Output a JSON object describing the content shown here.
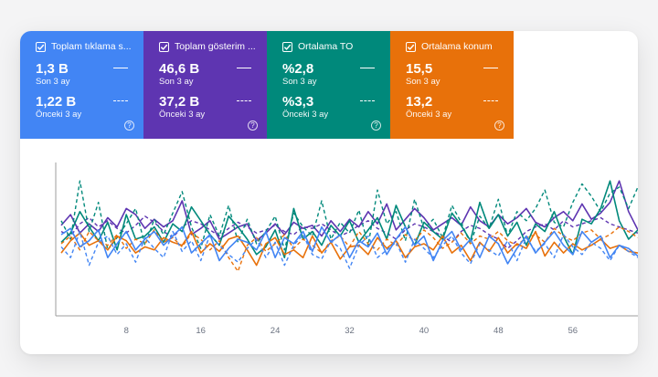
{
  "cards": [
    {
      "title": "Toplam tıklama s...",
      "value": "1,3 B",
      "period": "Son 3 ay",
      "prev_value": "1,22 B",
      "prev_period": "Önceki 3 ay",
      "color": "#4285f4"
    },
    {
      "title": "Toplam gösterim ...",
      "value": "46,6 B",
      "period": "Son 3 ay",
      "prev_value": "37,2 B",
      "prev_period": "Önceki 3 ay",
      "color": "#5e35b1"
    },
    {
      "title": "Ortalama TO",
      "value": "%2,8",
      "period": "Son 3 ay",
      "prev_value": "%3,3",
      "prev_period": "Önceki 3 ay",
      "color": "#00897b"
    },
    {
      "title": "Ortalama konum",
      "value": "15,5",
      "period": "Son 3 ay",
      "prev_value": "13,2",
      "prev_period": "Önceki 3 ay",
      "color": "#e8710a"
    }
  ],
  "help_glyph": "?",
  "chart_data": {
    "type": "line",
    "x_ticks": [
      "8",
      "16",
      "24",
      "32",
      "40",
      "48",
      "56"
    ],
    "x": [
      1,
      2,
      3,
      4,
      5,
      6,
      7,
      8,
      9,
      10,
      11,
      12,
      13,
      14,
      15,
      16,
      17,
      18,
      19,
      20,
      21,
      22,
      23,
      24,
      25,
      26,
      27,
      28,
      29,
      30,
      31,
      32,
      33,
      34,
      35,
      36,
      37,
      38,
      39,
      40,
      41,
      42,
      43,
      44,
      45,
      46,
      47,
      48,
      49,
      50,
      51,
      52,
      53,
      54,
      55,
      56,
      57,
      58,
      59,
      60,
      61,
      62,
      63
    ],
    "series": [
      {
        "color": "#5e35b1",
        "style": "solid",
        "values": [
          59,
          66,
          54,
          60,
          55,
          64,
          58,
          70,
          66,
          57,
          63,
          58,
          62,
          75,
          53,
          57,
          62,
          50,
          54,
          58,
          60,
          49,
          54,
          60,
          53,
          61,
          57,
          59,
          52,
          62,
          55,
          63,
          58,
          68,
          60,
          73,
          56,
          63,
          70,
          64,
          56,
          60,
          64,
          59,
          71,
          62,
          58,
          66,
          60,
          64,
          70,
          61,
          58,
          64,
          68,
          62,
          73,
          63,
          67,
          74,
          88,
          68,
          56
        ]
      },
      {
        "color": "#5e35b1",
        "style": "dashed",
        "values": [
          55,
          52,
          60,
          64,
          58,
          62,
          57,
          54,
          59,
          65,
          61,
          55,
          51,
          58,
          62,
          60,
          56,
          52,
          57,
          61,
          58,
          54,
          56,
          59,
          55,
          53,
          58,
          57,
          60,
          56,
          52,
          55,
          59,
          62,
          57,
          54,
          50,
          56,
          60,
          58,
          55,
          52,
          48,
          55,
          59,
          57,
          53,
          50,
          44,
          49,
          55,
          58,
          60,
          56,
          62,
          58,
          60,
          62,
          64,
          60,
          58,
          56,
          54
        ]
      },
      {
        "color": "#00897b",
        "style": "solid",
        "values": [
          48,
          54,
          68,
          58,
          49,
          61,
          43,
          66,
          50,
          52,
          58,
          48,
          60,
          55,
          71,
          62,
          53,
          46,
          65,
          58,
          50,
          40,
          45,
          56,
          38,
          70,
          50,
          55,
          46,
          59,
          52,
          62,
          48,
          56,
          64,
          50,
          72,
          58,
          46,
          61,
          55,
          50,
          67,
          59,
          49,
          74,
          57,
          66,
          52,
          61,
          46,
          60,
          55,
          68,
          52,
          40,
          63,
          60,
          70,
          88,
          62,
          50,
          56
        ]
      },
      {
        "color": "#00897b",
        "style": "dashed",
        "values": [
          62,
          50,
          88,
          55,
          74,
          43,
          51,
          60,
          70,
          46,
          63,
          53,
          67,
          81,
          58,
          44,
          66,
          52,
          72,
          48,
          63,
          47,
          55,
          65,
          43,
          67,
          58,
          52,
          75,
          50,
          61,
          54,
          69,
          46,
          82,
          60,
          68,
          49,
          76,
          57,
          63,
          51,
          72,
          61,
          47,
          65,
          57,
          76,
          52,
          68,
          62,
          70,
          82,
          61,
          58,
          74,
          86,
          78,
          68,
          80,
          84,
          70,
          84
        ]
      },
      {
        "color": "#e8710a",
        "style": "solid",
        "values": [
          41,
          49,
          54,
          46,
          49,
          43,
          52,
          49,
          41,
          45,
          43,
          51,
          48,
          46,
          55,
          41,
          47,
          42,
          50,
          52,
          43,
          33,
          47,
          51,
          40,
          43,
          38,
          52,
          41,
          48,
          37,
          45,
          46,
          40,
          51,
          44,
          49,
          38,
          45,
          47,
          43,
          52,
          41,
          46,
          36,
          48,
          42,
          51,
          41,
          47,
          44,
          55,
          39,
          48,
          41,
          47,
          43,
          46,
          50,
          44,
          46,
          42,
          41
        ]
      },
      {
        "color": "#e8710a",
        "style": "dashed",
        "values": [
          47,
          52,
          43,
          55,
          49,
          46,
          53,
          44,
          50,
          47,
          56,
          48,
          51,
          45,
          54,
          50,
          43,
          49,
          38,
          29,
          46,
          51,
          42,
          47,
          53,
          44,
          50,
          46,
          41,
          49,
          52,
          45,
          55,
          47,
          43,
          50,
          46,
          53,
          49,
          56,
          51,
          44,
          48,
          54,
          47,
          52,
          50,
          55,
          49,
          46,
          51,
          53,
          48,
          57,
          52,
          49,
          54,
          56,
          50,
          53,
          58,
          55,
          51
        ]
      },
      {
        "color": "#4285f4",
        "style": "solid",
        "values": [
          53,
          57,
          45,
          49,
          56,
          38,
          47,
          55,
          43,
          50,
          55,
          46,
          52,
          58,
          41,
          47,
          53,
          36,
          44,
          50,
          48,
          43,
          55,
          38,
          51,
          47,
          55,
          42,
          58,
          48,
          53,
          38,
          49,
          45,
          54,
          40,
          50,
          58,
          46,
          52,
          36,
          49,
          55,
          43,
          50,
          38,
          52,
          47,
          34,
          44,
          52,
          41,
          48,
          55,
          46,
          40,
          55,
          48,
          52,
          38,
          46,
          44,
          39
        ]
      },
      {
        "color": "#4285f4",
        "style": "dashed",
        "values": [
          45,
          38,
          55,
          33,
          48,
          52,
          40,
          47,
          35,
          51,
          44,
          38,
          55,
          42,
          49,
          36,
          53,
          46,
          40,
          35,
          44,
          50,
          38,
          48,
          33,
          46,
          53,
          40,
          37,
          49,
          44,
          31,
          46,
          52,
          38,
          43,
          48,
          35,
          50,
          44,
          38,
          46,
          52,
          41,
          34,
          47,
          43,
          39,
          49,
          36,
          51,
          42,
          47,
          38,
          53,
          45,
          40,
          48,
          44,
          36,
          46,
          42,
          38
        ]
      }
    ]
  }
}
